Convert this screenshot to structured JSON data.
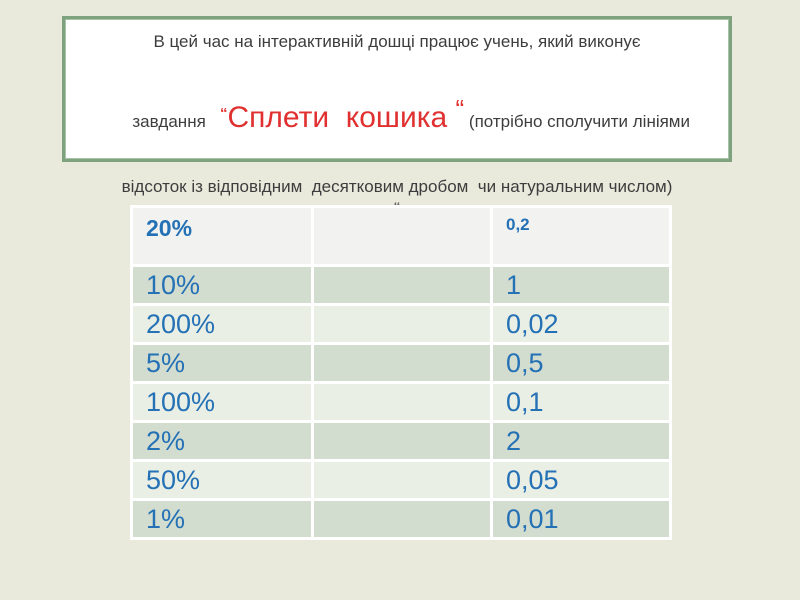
{
  "slide": {
    "background_color": "#e9e9dc"
  },
  "title_box": {
    "border_color": "#7da27d",
    "text_color": "#3d3d3d",
    "accent_color": "#e03030",
    "line1": "В цей час на інтерактивній дошці працює учень, який виконує",
    "line2_prefix": "завдання   ",
    "quote_open": "“",
    "task_name": "Сплети  кошика ",
    "quote_close": "“",
    "line2_suffix": " (потрібно сполучити лініями",
    "line3": "відсоток із відповідним  десятковим дробом  чи натуральним числом)",
    "line4": "“"
  },
  "table": {
    "text_color": "#2471b5",
    "header_bg": "#f2f2f1",
    "row_bg_dark": "#d2dccf",
    "row_bg_light": "#e9efe5",
    "gap_color": "#ffffff",
    "header": {
      "percent": "20%",
      "middle": "",
      "decimal": "0,2"
    },
    "rows": [
      {
        "percent": "10%",
        "middle": "",
        "decimal": "1"
      },
      {
        "percent": "200%",
        "middle": "",
        "decimal": "0,02"
      },
      {
        "percent": "5%",
        "middle": "",
        "decimal": "0,5"
      },
      {
        "percent": "100%",
        "middle": "",
        "decimal": "0,1"
      },
      {
        "percent": "2%",
        "middle": "",
        "decimal": "2"
      },
      {
        "percent": "50%",
        "middle": "",
        "decimal": "0,05"
      },
      {
        "percent": "1%",
        "middle": "",
        "decimal": "0,01"
      }
    ]
  }
}
